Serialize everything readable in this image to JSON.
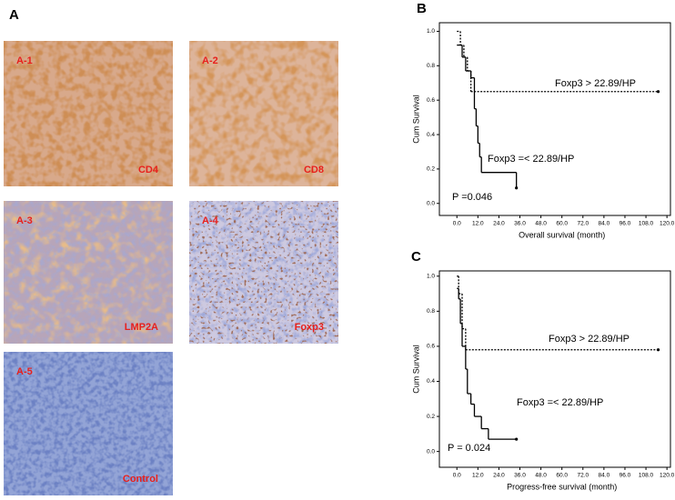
{
  "panel_a": {
    "label": "A",
    "images": [
      {
        "id": "A-1",
        "marker": "CD4"
      },
      {
        "id": "A-2",
        "marker": "CD8"
      },
      {
        "id": "A-3",
        "marker": "LMP2A"
      },
      {
        "id": "A-4",
        "marker": "Foxp3"
      },
      {
        "id": "A-5",
        "marker": "Control"
      }
    ]
  },
  "chart_data": [
    {
      "type": "line",
      "step": true,
      "panel": "B",
      "ylabel": "Cum Survival",
      "xlabel": "Overall survival (month)",
      "annotation": "P =0.046",
      "xlim": [
        -10,
        122
      ],
      "ylim": [
        -0.07,
        1.05
      ],
      "xticks": [
        {
          "value": 0,
          "label": "0.0"
        },
        {
          "value": 12,
          "label": "12.0"
        },
        {
          "value": 24,
          "label": "24.0"
        },
        {
          "value": 36,
          "label": "36.0"
        },
        {
          "value": 48,
          "label": "48.0"
        },
        {
          "value": 60,
          "label": "60.0"
        },
        {
          "value": 72,
          "label": "72.0"
        },
        {
          "value": 84,
          "label": "84.0"
        },
        {
          "value": 96,
          "label": "96.0"
        },
        {
          "value": 108,
          "label": "108.0"
        },
        {
          "value": 120,
          "label": "120.0"
        }
      ],
      "yticks": [
        {
          "value": 0,
          "label": "0.0"
        },
        {
          "value": 0.2,
          "label": "0.2"
        },
        {
          "value": 0.4,
          "label": "0.4"
        },
        {
          "value": 0.6,
          "label": "0.6"
        },
        {
          "value": 0.8,
          "label": "0.8"
        },
        {
          "value": 1,
          "label": "1.0"
        }
      ],
      "series": [
        {
          "name": "Foxp3 > 22.89/HP",
          "color": "#000000",
          "dash": "dotted",
          "x": [
            0,
            2,
            4,
            6,
            8,
            115
          ],
          "values": [
            1.0,
            0.92,
            0.85,
            0.77,
            0.65,
            0.65
          ]
        },
        {
          "name": "Foxp3 =< 22.89/HP",
          "color": "#000000",
          "dash": "solid",
          "x": [
            0,
            3,
            5,
            8,
            10,
            11,
            12,
            13,
            14,
            34
          ],
          "values": [
            0.92,
            0.85,
            0.77,
            0.73,
            0.55,
            0.45,
            0.35,
            0.27,
            0.18,
            0.09
          ]
        }
      ]
    },
    {
      "type": "line",
      "step": true,
      "panel": "C",
      "ylabel": "Cum Survival",
      "xlabel": "Progress-free survival (month)",
      "annotation": "P = 0.024",
      "xlim": [
        -10,
        122
      ],
      "ylim": [
        -0.09,
        1.03
      ],
      "xticks": [
        {
          "value": 0,
          "label": "0.0"
        },
        {
          "value": 12,
          "label": "12.0"
        },
        {
          "value": 24,
          "label": "24.0"
        },
        {
          "value": 36,
          "label": "36.0"
        },
        {
          "value": 48,
          "label": "48.0"
        },
        {
          "value": 60,
          "label": "60.0"
        },
        {
          "value": 72,
          "label": "72.0"
        },
        {
          "value": 84,
          "label": "84.0"
        },
        {
          "value": 96,
          "label": "96.0"
        },
        {
          "value": 108,
          "label": "108.0"
        },
        {
          "value": 120,
          "label": "120.0"
        }
      ],
      "yticks": [
        {
          "value": 0,
          "label": "0.0"
        },
        {
          "value": 0.2,
          "label": "0.2"
        },
        {
          "value": 0.4,
          "label": "0.4"
        },
        {
          "value": 0.6,
          "label": "0.6"
        },
        {
          "value": 0.8,
          "label": "0.8"
        },
        {
          "value": 1,
          "label": "1.0"
        }
      ],
      "series": [
        {
          "name": "Foxp3 > 22.89/HP",
          "color": "#000000",
          "dash": "dotted",
          "x": [
            0,
            1,
            3,
            5,
            115
          ],
          "values": [
            1.0,
            0.9,
            0.7,
            0.58,
            0.58
          ]
        },
        {
          "name": "Foxp3 =< 22.89/HP",
          "color": "#000000",
          "dash": "solid",
          "x": [
            0,
            1,
            2,
            3,
            5,
            6,
            8,
            10,
            14,
            18,
            34
          ],
          "values": [
            0.93,
            0.87,
            0.73,
            0.6,
            0.47,
            0.33,
            0.27,
            0.2,
            0.13,
            0.07,
            0.07
          ]
        }
      ]
    }
  ]
}
